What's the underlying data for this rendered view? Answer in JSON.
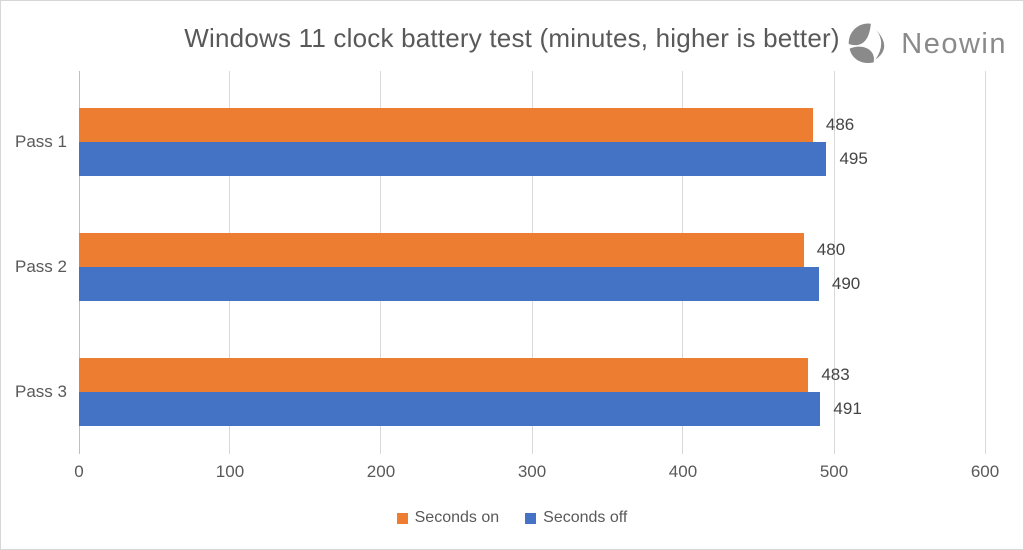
{
  "header": {
    "logo_text": "Neowin"
  },
  "chart_data": {
    "type": "bar",
    "orientation": "horizontal",
    "title": "Windows 11 clock battery test (minutes, higher is better)",
    "categories": [
      "Pass 1",
      "Pass 2",
      "Pass 3"
    ],
    "series": [
      {
        "name": "Seconds on",
        "color": "#ED7D31",
        "values": [
          486,
          480,
          483
        ]
      },
      {
        "name": "Seconds off",
        "color": "#4472C4",
        "values": [
          495,
          490,
          491
        ]
      }
    ],
    "xlim": [
      0,
      600
    ],
    "x_ticks": [
      0,
      100,
      200,
      300,
      400,
      500,
      600
    ],
    "grid": "vertical-only",
    "legend_position": "bottom",
    "data_labels_shown": true
  },
  "colors": {
    "background": "#FFFFFF",
    "frame_border": "#D6D6D6",
    "gridline": "#D9D9D9",
    "axis_line": "#BFBFBF",
    "text": "#595959",
    "data_label": "#444444",
    "logo": "#8A8A8A"
  }
}
